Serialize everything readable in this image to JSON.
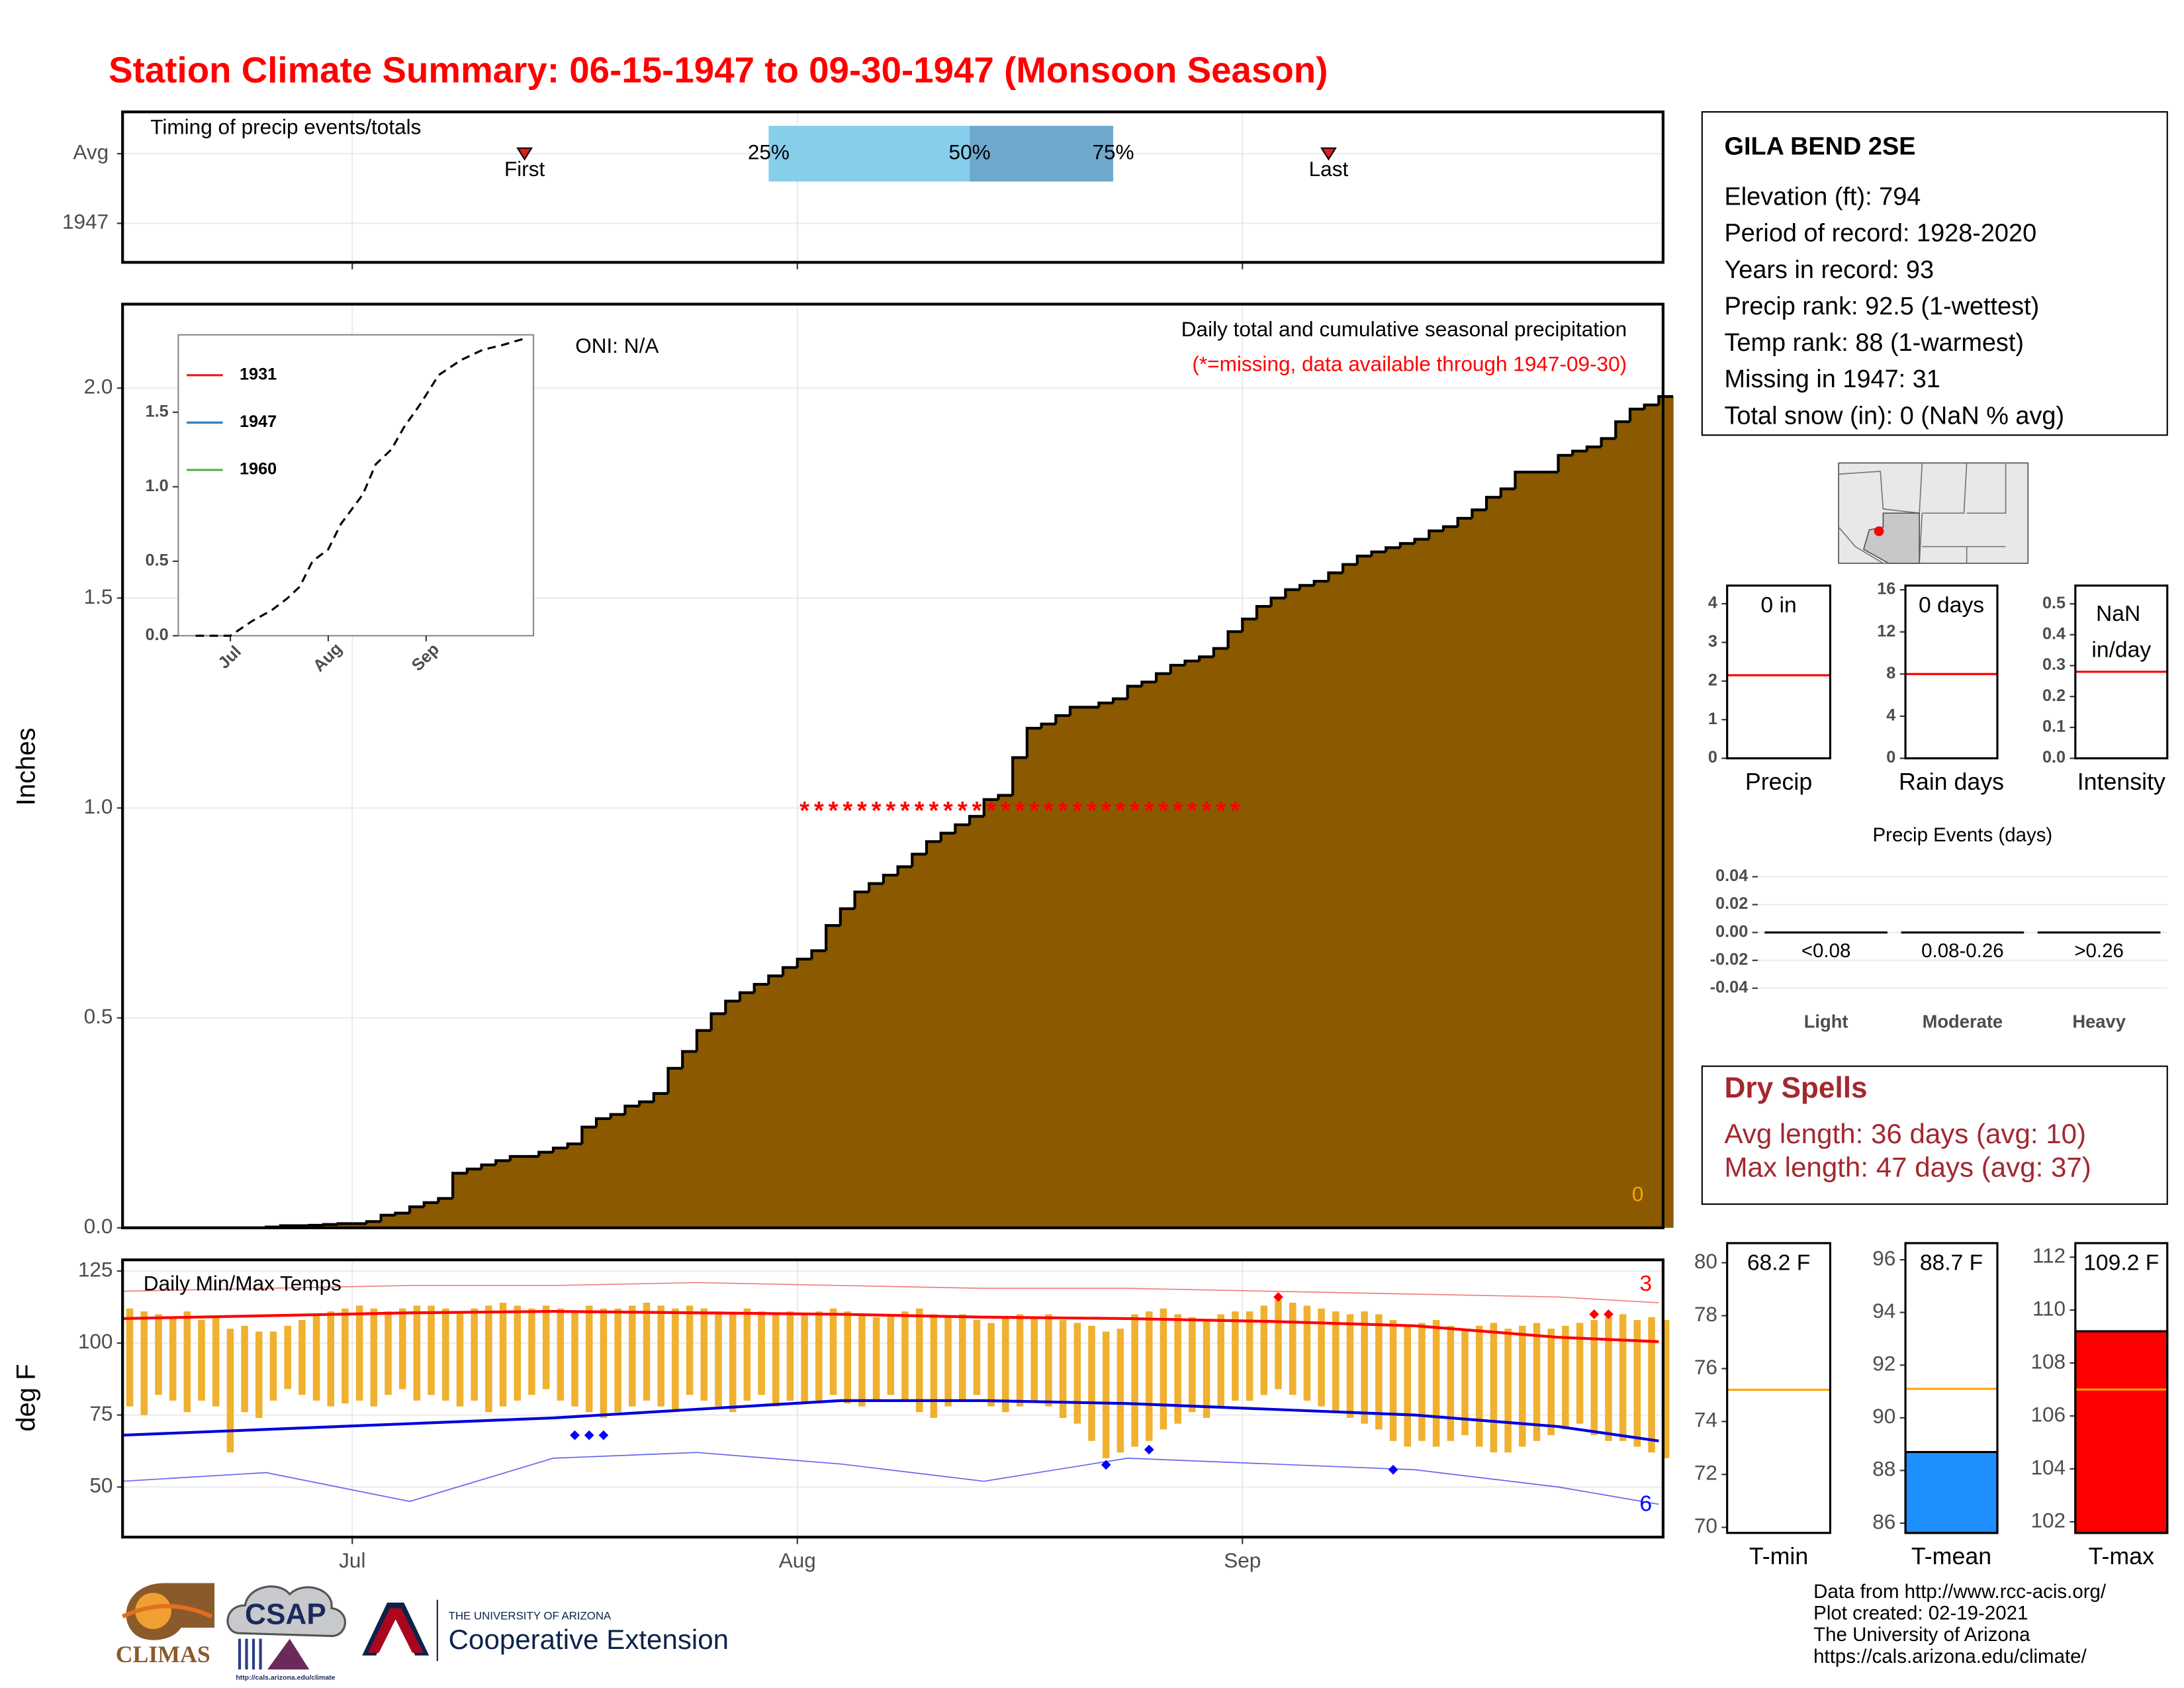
{
  "title": "Station Climate Summary: 06-15-1947 to 09-30-1947 (Monsoon Season)",
  "chart_data": [
    {
      "type": "timeline",
      "title": "Timing of precip events/totals",
      "categories": [
        "Avg",
        "1947"
      ],
      "xlim": [
        0,
        107.3
      ],
      "events": [
        {
          "label": "First",
          "x": 28
        },
        {
          "label": "Last",
          "x": 84
        }
      ],
      "quantiles": [
        {
          "label": "25%",
          "x": 45
        },
        {
          "label": "50%",
          "x": 59
        },
        {
          "label": "75%",
          "x": 69
        }
      ],
      "band_colors": [
        "#87ceeb",
        "#6fa8cd"
      ],
      "marker_color": "#e41a1c"
    },
    {
      "type": "step_area",
      "title": "Daily total and cumulative seasonal precipitation",
      "subtitle": "(*=missing, data available through 1947-09-30)",
      "oni": "ONI: N/A",
      "ylabel": "Inches",
      "corner_value": 0,
      "color": "#8b5a00",
      "xlim": [
        0,
        107.3
      ],
      "ylim": [
        0,
        2.2
      ],
      "yticks": [
        {
          "value": 0,
          "label": "0.0"
        },
        {
          "value": 0.5,
          "label": "0.5"
        },
        {
          "value": 1,
          "label": "1.0"
        },
        {
          "value": 1.5,
          "label": "1.5"
        },
        {
          "value": 2,
          "label": "2.0"
        }
      ],
      "grid": true,
      "values": [
        0,
        0,
        0,
        0,
        0,
        0,
        0,
        0,
        0,
        0,
        0.002,
        0.005,
        0.005,
        0.006,
        0.008,
        0.01,
        0.01,
        0.015,
        0.03,
        0.035,
        0.05,
        0.06,
        0.07,
        0.13,
        0.14,
        0.15,
        0.16,
        0.17,
        0.17,
        0.18,
        0.19,
        0.2,
        0.24,
        0.26,
        0.27,
        0.29,
        0.3,
        0.32,
        0.38,
        0.42,
        0.47,
        0.51,
        0.54,
        0.56,
        0.58,
        0.6,
        0.62,
        0.64,
        0.66,
        0.72,
        0.76,
        0.8,
        0.82,
        0.84,
        0.86,
        0.89,
        0.92,
        0.94,
        0.96,
        0.98,
        1.02,
        1.03,
        1.12,
        1.19,
        1.2,
        1.22,
        1.24,
        1.24,
        1.25,
        1.26,
        1.29,
        1.3,
        1.32,
        1.34,
        1.35,
        1.36,
        1.38,
        1.42,
        1.45,
        1.48,
        1.5,
        1.52,
        1.53,
        1.54,
        1.56,
        1.58,
        1.6,
        1.61,
        1.62,
        1.63,
        1.64,
        1.66,
        1.67,
        1.69,
        1.71,
        1.74,
        1.76,
        1.8,
        1.8,
        1.8,
        1.84,
        1.85,
        1.86,
        1.88,
        1.92,
        1.95,
        1.96,
        1.98
      ],
      "missing_symbol": "*",
      "missing_y": 1,
      "missing_x": [
        47,
        48,
        49,
        50,
        51,
        52,
        53,
        54,
        55,
        56,
        57,
        58,
        59,
        60,
        61,
        62,
        63,
        64,
        65,
        66,
        67,
        68,
        69,
        70,
        71,
        72,
        73,
        74,
        75,
        76,
        77
      ],
      "missing_color": "#ff0000"
    },
    {
      "type": "line",
      "xlim": [
        -0.5,
        112
      ],
      "ylim": [
        0,
        2.02
      ],
      "xticks": [
        {
          "value": 16,
          "label": "Jul"
        },
        {
          "value": 47,
          "label": "Aug"
        },
        {
          "value": 78,
          "label": "Sep"
        }
      ],
      "yticks": [
        {
          "value": 0,
          "label": "0.0"
        },
        {
          "value": 0.5,
          "label": "0.5"
        },
        {
          "value": 1,
          "label": "1.0"
        },
        {
          "value": 1.5,
          "label": "1.5"
        }
      ],
      "x": [
        5,
        16,
        23,
        29,
        34,
        38,
        42,
        47,
        51,
        58,
        62,
        67,
        71,
        76,
        82,
        89,
        96,
        102,
        110
      ],
      "values": [
        0,
        0,
        0.1,
        0.17,
        0.25,
        0.33,
        0.5,
        0.58,
        0.75,
        0.95,
        1.15,
        1.25,
        1.4,
        1.55,
        1.75,
        1.85,
        1.92,
        1.95,
        2.0
      ],
      "color": "#000000",
      "dashed": true,
      "legend": [
        {
          "name": "1931",
          "color": "#e41a1c"
        },
        {
          "name": "1947",
          "color": "#377eb8"
        },
        {
          "name": "1960",
          "color": "#4daf4a"
        }
      ]
    },
    {
      "type": "range_bar",
      "title": "Daily Min/Max Temps",
      "ylabel": "deg F",
      "xlim": [
        0,
        107.3
      ],
      "ylim": [
        32.6,
        128.9
      ],
      "xticks": [
        {
          "value": 16,
          "label": "Jul"
        },
        {
          "value": 47,
          "label": "Aug"
        },
        {
          "value": 78,
          "label": "Sep"
        }
      ],
      "yticks": [
        50,
        75,
        100,
        125
      ],
      "grid": true,
      "bar_color": "#f0b030",
      "max": [
        112,
        111,
        110,
        109,
        111,
        108,
        109,
        105,
        106,
        104,
        104,
        106,
        108,
        110,
        111,
        112,
        113,
        112,
        111,
        112,
        113,
        113,
        112,
        111,
        112,
        113,
        114,
        113,
        112,
        113,
        112,
        111,
        113,
        112,
        112,
        113,
        114,
        113,
        112,
        113,
        112,
        111,
        110,
        112,
        111,
        110,
        111,
        110,
        111,
        112,
        111,
        110,
        109,
        110,
        111,
        112,
        110,
        109,
        110,
        108,
        107,
        109,
        110,
        109,
        110,
        108,
        107,
        106,
        104,
        105,
        110,
        111,
        112,
        110,
        109,
        108,
        110,
        111,
        111,
        113,
        115,
        114,
        113,
        112,
        111,
        110,
        111,
        110,
        108,
        106,
        107,
        108,
        106,
        105,
        106,
        107,
        105,
        106,
        107,
        105,
        106,
        107,
        108,
        109,
        110,
        108,
        109,
        108
      ],
      "min": [
        78,
        75,
        82,
        80,
        76,
        80,
        78,
        62,
        76,
        74,
        80,
        84,
        82,
        80,
        78,
        79,
        80,
        78,
        82,
        84,
        80,
        82,
        80,
        78,
        80,
        76,
        78,
        80,
        82,
        84,
        80,
        78,
        76,
        74,
        76,
        78,
        80,
        78,
        76,
        82,
        80,
        78,
        76,
        80,
        82,
        78,
        80,
        79,
        80,
        82,
        79,
        78,
        80,
        82,
        80,
        76,
        74,
        78,
        80,
        82,
        78,
        76,
        78,
        80,
        78,
        74,
        72,
        66,
        60,
        62,
        64,
        66,
        70,
        72,
        76,
        74,
        78,
        80,
        80,
        82,
        84,
        82,
        80,
        78,
        76,
        74,
        72,
        70,
        66,
        64,
        66,
        64,
        66,
        68,
        64,
        62,
        62,
        64,
        66,
        68,
        70,
        72,
        68,
        66,
        66,
        64,
        62,
        60
      ],
      "lines": [
        {
          "color": "#f08080",
          "width": 0.8,
          "x": [
            0,
            10,
            20,
            30,
            40,
            50,
            60,
            70,
            80,
            90,
            100,
            107
          ],
          "values": [
            118,
            119,
            120,
            120,
            121,
            120,
            119,
            119,
            118,
            117,
            116,
            114
          ]
        },
        {
          "color": "#ff0000",
          "width": 2,
          "x": [
            0,
            10,
            20,
            30,
            40,
            50,
            60,
            70,
            80,
            90,
            100,
            107
          ],
          "values": [
            108.5,
            109.5,
            110.5,
            111,
            110.5,
            110,
            109,
            108.5,
            107.5,
            106,
            102,
            100.5
          ]
        },
        {
          "color": "#0000dd",
          "width": 2,
          "x": [
            0,
            10,
            20,
            30,
            40,
            50,
            60,
            70,
            80,
            90,
            100,
            107
          ],
          "values": [
            68,
            70,
            72,
            74,
            77,
            80,
            80,
            79,
            77,
            75,
            71,
            66
          ]
        },
        {
          "color": "#6666ee",
          "width": 0.8,
          "x": [
            0,
            10,
            20,
            30,
            40,
            50,
            60,
            70,
            80,
            90,
            100,
            107
          ],
          "values": [
            52,
            55,
            45,
            60,
            62,
            58,
            52,
            60,
            58,
            56,
            50,
            44
          ]
        }
      ],
      "record_high": {
        "color": "#ff0000",
        "x": [
          80,
          102,
          103
        ],
        "values": [
          116,
          110,
          110
        ],
        "count": 3
      },
      "record_low": {
        "color": "#0000ff",
        "x": [
          31,
          32,
          33,
          68,
          71,
          88
        ],
        "values": [
          68,
          68,
          68,
          57.7,
          63,
          56
        ],
        "count": 6
      }
    },
    {
      "type": "bar",
      "xlabel": "Precip",
      "values": [
        0
      ],
      "value_labels": [
        "0 in"
      ],
      "avg": 2.15,
      "avg_color": "#ff0000",
      "color": "#1e90ff",
      "ylim": [
        0,
        4.47
      ],
      "yticks": [
        0,
        1,
        2,
        3,
        4
      ]
    },
    {
      "type": "bar",
      "xlabel": "Rain days",
      "values": [
        0
      ],
      "value_labels": [
        "0 days"
      ],
      "avg": 8,
      "avg_color": "#ff0000",
      "color": "#1e90ff",
      "ylim": [
        0,
        16.4
      ],
      "yticks": [
        0,
        4,
        8,
        12,
        16
      ]
    },
    {
      "type": "bar",
      "xlabel": "Intensity",
      "values": [
        null
      ],
      "value_labels": [
        "NaN in/day"
      ],
      "avg": 0.28,
      "avg_color": "#ff0000",
      "color": "#1e90ff",
      "ylim": [
        0,
        0.559
      ],
      "yticks": [
        {
          "value": 0,
          "label": "0.0"
        },
        {
          "value": 0.1,
          "label": "0.1"
        },
        {
          "value": 0.2,
          "label": "0.2"
        },
        {
          "value": 0.3,
          "label": "0.3"
        },
        {
          "value": 0.4,
          "label": "0.4"
        },
        {
          "value": 0.5,
          "label": "0.5"
        }
      ]
    },
    {
      "type": "bar",
      "title": "Precip Events (days)",
      "categories": [
        "<0.08",
        "0.08-0.26",
        ">0.26"
      ],
      "groups": [
        "Light",
        "Moderate",
        "Heavy"
      ],
      "values": [
        0,
        0,
        0
      ],
      "color": "#000000",
      "ylim": [
        -0.049,
        0.051
      ],
      "grid": true,
      "yticks": [
        {
          "value": -0.04,
          "label": "-0.04"
        },
        {
          "value": -0.02,
          "label": "-0.02"
        },
        {
          "value": 0,
          "label": "0.00"
        },
        {
          "value": 0.02,
          "label": "0.02"
        },
        {
          "value": 0.04,
          "label": "0.04"
        }
      ]
    },
    {
      "type": "bar",
      "xlabel": "T-min",
      "values": [
        68.2
      ],
      "value_labels": [
        "68.2 F"
      ],
      "avg": 75.2,
      "avg_color": "#ffa500",
      "color": "#ffffff",
      "ylim": [
        69.79,
        80.74
      ],
      "yticks": [
        70,
        72,
        74,
        76,
        78,
        80
      ]
    },
    {
      "type": "bar",
      "xlabel": "T-mean",
      "values": [
        88.7
      ],
      "value_labels": [
        "88.7 F"
      ],
      "avg": 91.1,
      "avg_color": "#ffa500",
      "color": "#1e90ff",
      "ylim": [
        85.63,
        96.63
      ],
      "yticks": [
        86,
        88,
        90,
        92,
        94,
        96
      ]
    },
    {
      "type": "bar",
      "xlabel": "T-max",
      "values": [
        109.2
      ],
      "value_labels": [
        "109.2 F"
      ],
      "avg": 107,
      "avg_color": "#ffa500",
      "color": "#ff0000",
      "ylim": [
        101.58,
        112.53
      ],
      "yticks": [
        102,
        104,
        106,
        108,
        110,
        112
      ]
    }
  ],
  "station": {
    "name": "GILA BEND 2SE",
    "lines": [
      "Elevation (ft): 794",
      "Period of record: 1928-2020",
      "Years in record: 93",
      "Precip rank: 92.5 (1-wettest)",
      "Temp rank: 88 (1-warmest)",
      "Missing in 1947: 31",
      "Total snow (in): 0 (NaN % avg)"
    ]
  },
  "dry_spells": {
    "title": "Dry Spells",
    "lines": [
      "Avg length: 36 days (avg: 10)",
      "Max length: 47 days (avg: 37)"
    ]
  },
  "logos": {
    "climas": "CLIMAS",
    "csap": "CSAP",
    "csap_url": "http://cals.arizona.edu/climate",
    "ua": "THE UNIVERSITY OF ARIZONA",
    "extension": "Cooperative Extension"
  },
  "credits": [
    "Data from http://www.rcc-acis.org/",
    "Plot created: 02-19-2021",
    "The University of Arizona",
    "https://cals.arizona.edu/climate/"
  ]
}
